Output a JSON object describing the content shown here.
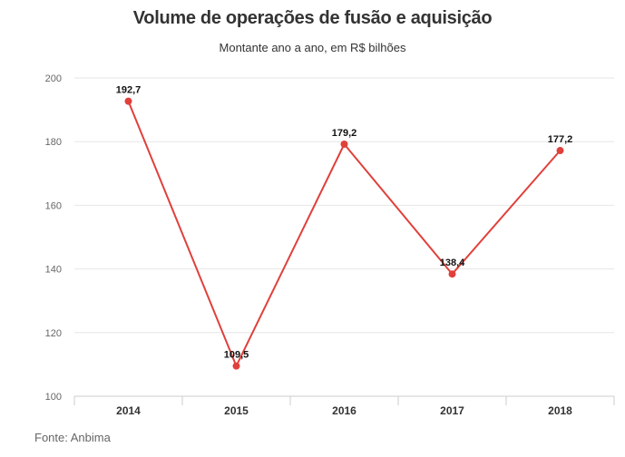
{
  "chart_data": {
    "type": "line",
    "title": "Volume de operações de fusão e aquisição",
    "subtitle": "Montante ano a ano, em R$ bilhões",
    "source": "Fonte: Anbima",
    "categories": [
      "2014",
      "2015",
      "2016",
      "2017",
      "2018"
    ],
    "series": [
      {
        "name": "Volume",
        "values": [
          192.7,
          109.5,
          179.2,
          138.4,
          177.2
        ],
        "labels": [
          "192,7",
          "109,5",
          "179,2",
          "138,4",
          "177,2"
        ]
      }
    ],
    "xlabel": "",
    "ylabel": "",
    "ylim": [
      100,
      200
    ],
    "yticks": [
      100,
      120,
      140,
      160,
      180,
      200
    ],
    "grid": true,
    "line_color": "#e0403b"
  }
}
